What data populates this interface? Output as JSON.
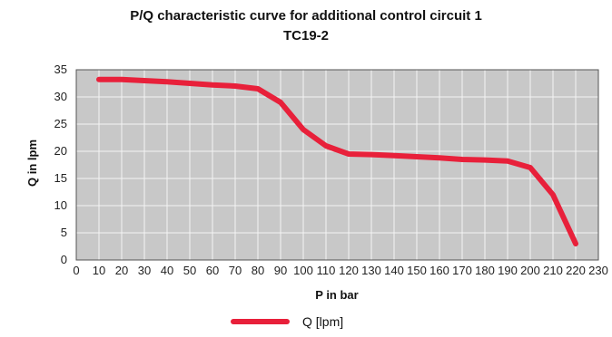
{
  "chart_data": {
    "type": "line",
    "title": "P/Q characteristic curve for additional control circuit 1",
    "subtitle": "TC19-2",
    "xlabel": "P in bar",
    "ylabel": "Q in lpm",
    "xlim": [
      0,
      230
    ],
    "ylim": [
      0,
      35
    ],
    "x_ticks": [
      "0",
      "10",
      "20",
      "30",
      "40",
      "50",
      "60",
      "70",
      "80",
      "90",
      "100",
      "110",
      "120",
      "130",
      "140",
      "150",
      "160",
      "170",
      "180",
      "190",
      "200",
      "210",
      "220",
      "230"
    ],
    "y_ticks": [
      "0",
      "5",
      "10",
      "15",
      "20",
      "25",
      "30",
      "35"
    ],
    "grid": true,
    "legend_position": "bottom-center",
    "plot_background": "#c8c8c8",
    "series": [
      {
        "name": "Q [lpm]",
        "color": "#e8203a",
        "x": [
          10,
          20,
          30,
          40,
          50,
          60,
          70,
          80,
          90,
          100,
          110,
          120,
          130,
          140,
          150,
          160,
          170,
          180,
          190,
          200,
          210,
          220
        ],
        "y": [
          33.2,
          33.2,
          33.0,
          32.8,
          32.5,
          32.2,
          32.0,
          31.5,
          29.0,
          24.0,
          21.0,
          19.5,
          19.4,
          19.2,
          19.0,
          18.8,
          18.5,
          18.4,
          18.2,
          17.0,
          12.0,
          3.0
        ]
      }
    ]
  }
}
